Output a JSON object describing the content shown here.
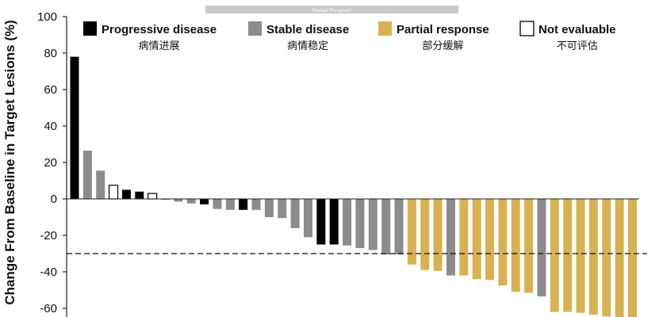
{
  "watermark": "Journal Pre-proof",
  "chart_data": {
    "type": "bar",
    "ylabel": "Change From Baseline in Target Lesions (%)",
    "ylim": [
      -65,
      100
    ],
    "yticks": [
      100,
      80,
      60,
      40,
      20,
      0,
      -20,
      -40,
      -60
    ],
    "threshold": -30,
    "grid": false,
    "legend_position": "top",
    "legend": [
      {
        "key": "PD",
        "label": "Progressive disease",
        "label_zh": "病情进展",
        "color": "#000000"
      },
      {
        "key": "SD",
        "label": "Stable disease",
        "label_zh": "病情稳定",
        "color": "#8c8c8c"
      },
      {
        "key": "PR",
        "label": "Partial response",
        "label_zh": "部分缓解",
        "color": "#d8b252"
      },
      {
        "key": "NE",
        "label": "Not evaluable",
        "label_zh": "不可评估",
        "color": "#ffffff"
      }
    ],
    "bars": [
      {
        "value": 78,
        "category": "PD"
      },
      {
        "value": 26.5,
        "category": "SD"
      },
      {
        "value": 15.5,
        "category": "SD"
      },
      {
        "value": 7.5,
        "category": "NE"
      },
      {
        "value": 5,
        "category": "PD"
      },
      {
        "value": 4,
        "category": "PD"
      },
      {
        "value": 3,
        "category": "NE"
      },
      {
        "value": -0.5,
        "category": "SD"
      },
      {
        "value": -1.5,
        "category": "SD"
      },
      {
        "value": -2.5,
        "category": "SD"
      },
      {
        "value": -3,
        "category": "PD"
      },
      {
        "value": -5.5,
        "category": "SD"
      },
      {
        "value": -6,
        "category": "SD"
      },
      {
        "value": -6,
        "category": "PD"
      },
      {
        "value": -6,
        "category": "SD"
      },
      {
        "value": -10,
        "category": "SD"
      },
      {
        "value": -10.5,
        "category": "SD"
      },
      {
        "value": -16,
        "category": "SD"
      },
      {
        "value": -21,
        "category": "SD"
      },
      {
        "value": -25,
        "category": "PD"
      },
      {
        "value": -25,
        "category": "PD"
      },
      {
        "value": -25.5,
        "category": "SD"
      },
      {
        "value": -27,
        "category": "SD"
      },
      {
        "value": -28,
        "category": "SD"
      },
      {
        "value": -30.5,
        "category": "SD"
      },
      {
        "value": -30.5,
        "category": "SD"
      },
      {
        "value": -36,
        "category": "PR"
      },
      {
        "value": -39,
        "category": "PR"
      },
      {
        "value": -39.5,
        "category": "PR"
      },
      {
        "value": -42,
        "category": "SD"
      },
      {
        "value": -42,
        "category": "PR"
      },
      {
        "value": -44,
        "category": "PR"
      },
      {
        "value": -44.5,
        "category": "PR"
      },
      {
        "value": -47.5,
        "category": "PR"
      },
      {
        "value": -51,
        "category": "PR"
      },
      {
        "value": -51.5,
        "category": "PR"
      },
      {
        "value": -53.5,
        "category": "SD"
      },
      {
        "value": -62,
        "category": "PR"
      },
      {
        "value": -62,
        "category": "PR"
      },
      {
        "value": -62.5,
        "category": "PR"
      },
      {
        "value": -63.5,
        "category": "PR"
      },
      {
        "value": -64.5,
        "category": "PR"
      },
      {
        "value": -65,
        "category": "PR"
      },
      {
        "value": -65,
        "category": "PR"
      }
    ]
  }
}
